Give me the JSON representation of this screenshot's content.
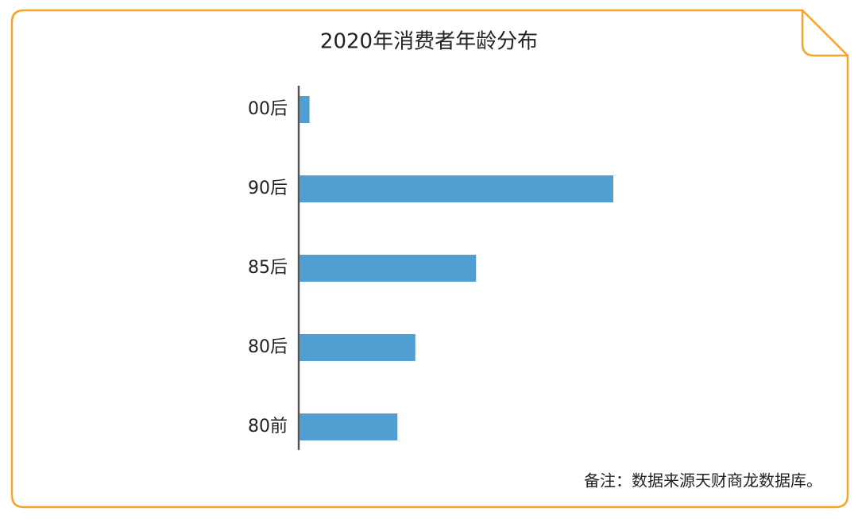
{
  "chart_data": {
    "type": "hbar",
    "title": "2020年消费者年龄分布",
    "categories": [
      "00后",
      "90后",
      "85后",
      "80后",
      "80前"
    ],
    "values": [
      1.4,
      43.9,
      24.7,
      16.2,
      13.7
    ],
    "color": "#519fd2",
    "note": "备注：数据来源天财商龙数据库。"
  }
}
